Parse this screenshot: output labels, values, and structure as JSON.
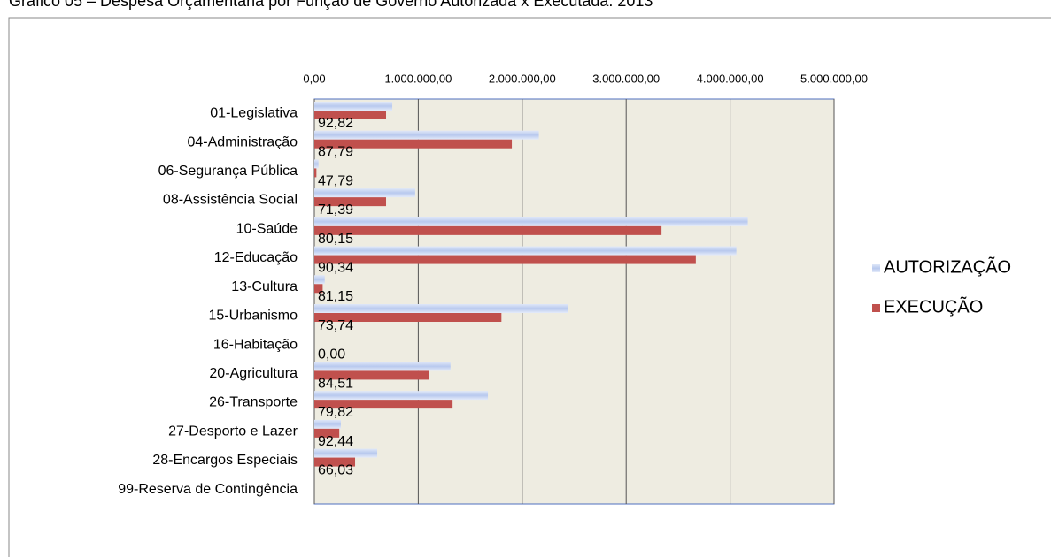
{
  "chart_data": {
    "type": "barh",
    "title": "Gráfico 05 – Despesa Orçamentária por Função de Governo Autorizada x Executada: 2013",
    "categories": [
      "01-Legislativa",
      "04-Administração",
      "06-Segurança Pública",
      "08-Assistência Social",
      "10-Saúde",
      "12-Educação",
      "13-Cultura",
      "15-Urbanismo",
      "16-Habitação",
      "20-Agricultura",
      "26-Transporte",
      "27-Desporto e Lazer",
      "28-Encargos Especiais",
      "99-Reserva de Contingência"
    ],
    "series": [
      {
        "name": "AUTORIZAÇÃO",
        "color": "#b8c9ee",
        "values": [
          750000,
          2160000,
          40000,
          970000,
          4170000,
          4060000,
          100000,
          2440000,
          0,
          1310000,
          1670000,
          255000,
          605000,
          0
        ]
      },
      {
        "name": "EXECUÇÃO",
        "color": "#c0504d",
        "values": [
          690000,
          1900000,
          20000,
          690000,
          3340000,
          3670000,
          80000,
          1800000,
          0,
          1100000,
          1330000,
          240000,
          392000,
          0
        ]
      }
    ],
    "bar_labels": [
      "92,82",
      "87,79",
      "47,79",
      "71,39",
      "80,15",
      "90,34",
      "81,15",
      "73,74",
      "0,00",
      "84,51",
      "79,82",
      "92,44",
      "66,03",
      null
    ],
    "xlim": [
      0,
      5000000
    ],
    "xticks": [
      {
        "value": 0,
        "label": "0,00"
      },
      {
        "value": 1000000,
        "label": "1.000.000,00"
      },
      {
        "value": 2000000,
        "label": "2.000.000,00"
      },
      {
        "value": 3000000,
        "label": "3.000.000,00"
      },
      {
        "value": 4000000,
        "label": "4.000.000,00"
      },
      {
        "value": 5000000,
        "label": "5.000.000,00"
      }
    ],
    "grid": true,
    "legend": "right"
  }
}
